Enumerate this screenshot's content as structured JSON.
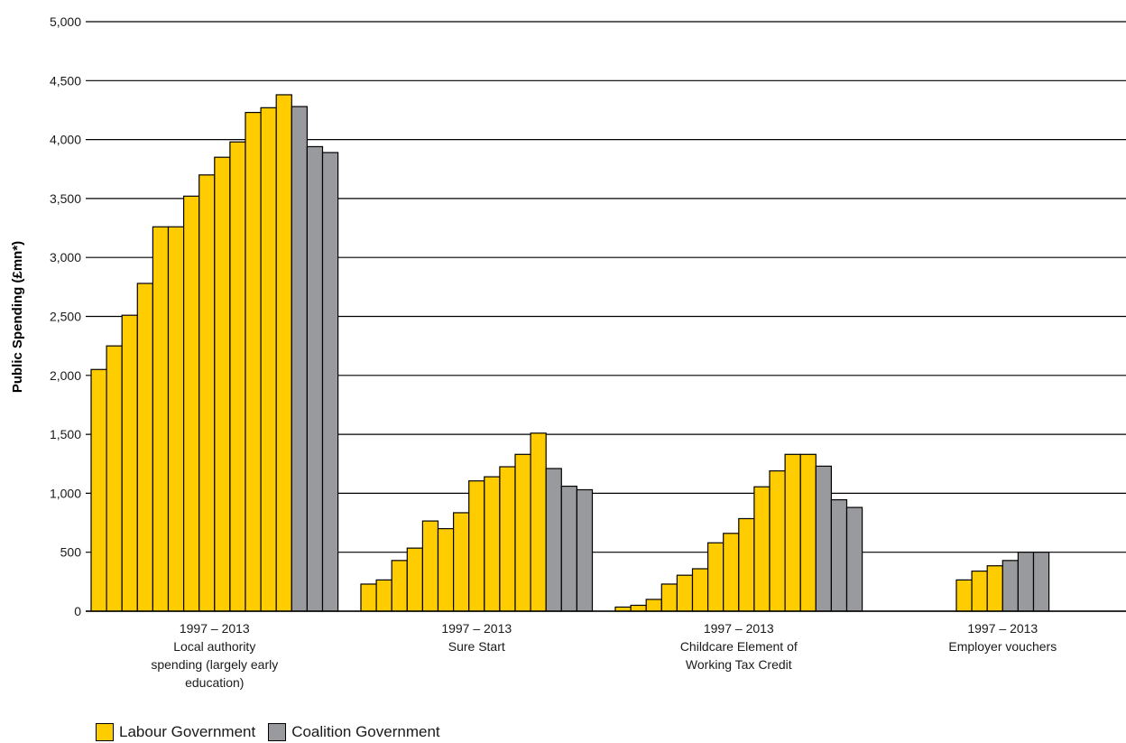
{
  "chart_data": {
    "type": "bar",
    "title": "",
    "ylabel": "Public Spending (£mn*)",
    "ylim": [
      0,
      5000
    ],
    "yticks": [
      0,
      500,
      1000,
      1500,
      2000,
      2500,
      3000,
      3500,
      4000,
      4500,
      5000
    ],
    "ytick_labels": [
      "0",
      "500",
      "1,000",
      "1,500",
      "2,000",
      "2,500",
      "3,000",
      "3,500",
      "4,000",
      "4,500",
      "5,000"
    ],
    "grid": true,
    "legend": {
      "placement": "bottom-left",
      "items": [
        {
          "name": "Labour Government",
          "color": "#ffcc00"
        },
        {
          "name": "Coalition Government",
          "color": "#999a9e"
        }
      ]
    },
    "groups": [
      {
        "label_lines": [
          "1997 – 2013",
          "Local authority",
          "spending (largely early",
          "education)"
        ],
        "labour": [
          2050,
          2250,
          2510,
          2780,
          3260,
          3260,
          3520,
          3700,
          3850,
          3980,
          4230,
          4270,
          4380
        ],
        "coalition": [
          4280,
          3940,
          3890
        ]
      },
      {
        "label_lines": [
          "1997 – 2013",
          "Sure Start"
        ],
        "labour": [
          230,
          265,
          430,
          535,
          765,
          700,
          835,
          1105,
          1140,
          1225,
          1330,
          1510
        ],
        "coalition": [
          1210,
          1060,
          1030
        ]
      },
      {
        "label_lines": [
          "1997 – 2013",
          "Childcare Element of",
          "Working Tax Credit"
        ],
        "labour": [
          35,
          50,
          100,
          230,
          305,
          360,
          580,
          660,
          785,
          1055,
          1190,
          1330,
          1330
        ],
        "coalition": [
          1230,
          945,
          880
        ]
      },
      {
        "label_lines": [
          "1997 – 2013",
          "Employer vouchers"
        ],
        "labour": [
          265,
          340,
          385
        ],
        "coalition": [
          430,
          500,
          500
        ]
      }
    ]
  }
}
